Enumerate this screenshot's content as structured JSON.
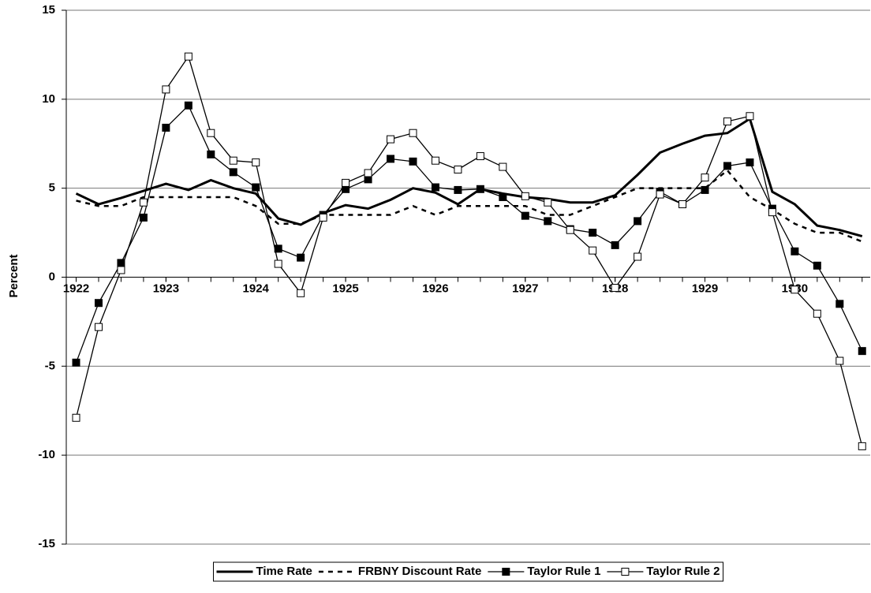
{
  "chart_data": {
    "type": "line",
    "y_label": "Percent",
    "x": [
      1922,
      1922.25,
      1922.5,
      1922.75,
      1923,
      1923.25,
      1923.5,
      1923.75,
      1924,
      1924.25,
      1924.5,
      1924.75,
      1925,
      1925.25,
      1925.5,
      1925.75,
      1926,
      1926.25,
      1926.5,
      1926.75,
      1927,
      1927.25,
      1927.5,
      1927.75,
      1928,
      1928.25,
      1928.5,
      1928.75,
      1929,
      1929.25,
      1929.5,
      1929.75,
      1930,
      1930.25,
      1930.5,
      1930.75
    ],
    "xlim": [
      1921.89,
      1930.84
    ],
    "xticks": [
      1922,
      1923,
      1924,
      1925,
      1926,
      1927,
      1928,
      1929,
      1930
    ],
    "ylim": [
      -15,
      15
    ],
    "yticks": [
      -15,
      -10,
      -5,
      0,
      5,
      10,
      15
    ],
    "grid": true,
    "legend": "bottom",
    "series": [
      {
        "name": "Time Rate",
        "color": "#000000",
        "style": "solid",
        "marker": "none",
        "values": [
          4.7,
          4.1,
          4.45,
          4.85,
          5.25,
          4.9,
          5.45,
          5.0,
          4.7,
          3.3,
          2.95,
          3.6,
          4.05,
          3.85,
          4.35,
          5.0,
          4.75,
          4.1,
          4.95,
          4.7,
          4.5,
          4.4,
          4.2,
          4.2,
          4.6,
          5.75,
          7.0,
          7.5,
          7.95,
          8.1,
          8.9,
          4.8,
          4.1,
          2.9,
          2.65,
          2.3
        ]
      },
      {
        "name": "FRBNY Discount Rate",
        "color": "#000000",
        "style": "dashed",
        "marker": "none",
        "values": [
          4.3,
          4.0,
          4.0,
          4.5,
          4.5,
          4.5,
          4.5,
          4.5,
          4.0,
          3.0,
          3.0,
          3.5,
          3.5,
          3.5,
          3.5,
          4.0,
          3.5,
          4.0,
          4.0,
          4.0,
          4.0,
          3.5,
          3.5,
          4.0,
          4.5,
          5.0,
          5.0,
          5.0,
          5.0,
          6.0,
          4.5,
          3.8,
          3.0,
          2.5,
          2.5,
          2.0
        ]
      },
      {
        "name": "Taylor Rule 1",
        "color": "#000000",
        "style": "solid",
        "marker": "filled",
        "values": [
          -4.8,
          -1.45,
          0.8,
          3.35,
          8.4,
          9.65,
          6.9,
          5.9,
          5.05,
          1.6,
          1.1,
          3.5,
          4.95,
          5.5,
          6.65,
          6.5,
          5.05,
          4.9,
          4.95,
          4.5,
          3.45,
          3.15,
          2.7,
          2.5,
          1.8,
          3.15,
          4.8,
          4.1,
          4.9,
          6.25,
          6.45,
          3.85,
          1.45,
          0.65,
          -1.5,
          -4.15
        ]
      },
      {
        "name": "Taylor Rule 2",
        "color": "#000000",
        "style": "solid",
        "marker": "open",
        "values": [
          -7.9,
          -2.8,
          0.4,
          4.2,
          10.55,
          12.4,
          8.1,
          6.55,
          6.45,
          0.75,
          -0.9,
          3.35,
          5.3,
          5.85,
          7.75,
          8.1,
          6.55,
          6.05,
          6.8,
          6.2,
          4.55,
          4.2,
          2.65,
          1.5,
          -0.6,
          1.15,
          4.65,
          4.1,
          5.6,
          8.75,
          9.05,
          3.65,
          -0.7,
          -2.05,
          -4.7,
          -9.5
        ]
      }
    ]
  }
}
